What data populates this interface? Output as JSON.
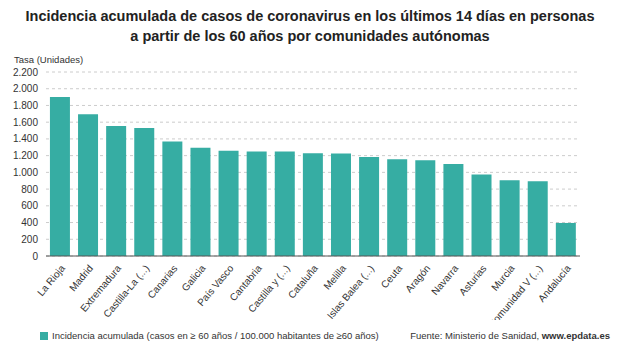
{
  "chart_data": {
    "type": "bar",
    "title": "Incidencia acumulada de casos de coronavirus en los últimos 14 días en personas a partir de los 60 años por comunidades autónomas",
    "y_label": "Tasa (Unidades)",
    "source": "Fuente: Ministerio de Sanidad, ",
    "source_link": "www.epdata.es",
    "categories": [
      "La Rioja",
      "Madrid",
      "Extremadura",
      "Castilla-La (...)",
      "Canarias",
      "Galicia",
      "País Vasco",
      "Cantabria",
      "Castilla y (...)",
      "Cataluña",
      "Melilla",
      "Islas Balea (...)",
      "Ceuta",
      "Aragón",
      "Navarra",
      "Asturias",
      "Murcia",
      "Comunidad V (...)",
      "Andalucía"
    ],
    "series": [
      {
        "name": "Incidencia acumulada (casos en ≥ 60 años / 100.000 habitantes de ≥60 años)",
        "color": "#36ada3",
        "values": [
          1900,
          1695,
          1555,
          1530,
          1370,
          1295,
          1258,
          1250,
          1248,
          1228,
          1225,
          1185,
          1158,
          1145,
          1100,
          975,
          905,
          895,
          395
        ]
      }
    ],
    "ylim": [
      0,
      2200
    ],
    "yticks": [
      0,
      200,
      400,
      600,
      800,
      {
        "value": 1000,
        "label": "1.000"
      },
      {
        "value": 1200,
        "label": "1.200"
      },
      {
        "value": 1400,
        "label": "1.400"
      },
      {
        "value": 1600,
        "label": "1.600"
      },
      {
        "value": 1800,
        "label": "1.800"
      },
      {
        "value": 2000,
        "label": "2.000"
      },
      {
        "value": 2200,
        "label": "2.200"
      }
    ],
    "grid": true,
    "legend": "bottom"
  }
}
